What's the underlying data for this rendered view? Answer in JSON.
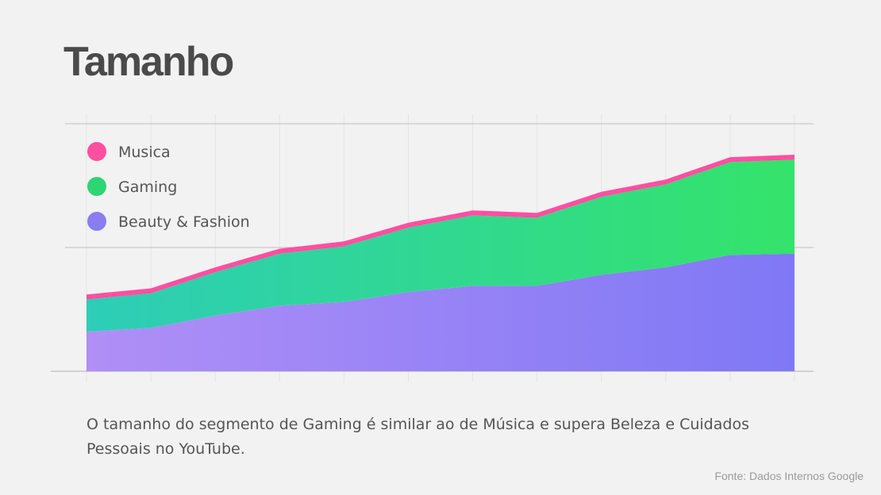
{
  "title": "Tamanho",
  "caption": "O tamanho do segmento de Gaming é similar ao de Música e supera Beleza e Cuidados Pessoais no YouTube.",
  "source": "Fonte: Dados Internos Google",
  "chart_data": {
    "type": "area",
    "stacked": true,
    "x": [
      0,
      1,
      2,
      3,
      4,
      5,
      6,
      7,
      8,
      9,
      10,
      11
    ],
    "ylim": [
      0,
      2
    ],
    "gridlines_y": [
      0,
      1,
      2
    ],
    "legend_placement": "top-left",
    "series": [
      {
        "name": "Beauty & Fashion",
        "color": "#8b7cf2",
        "gradient": [
          "#b08ff6",
          "#7f78f5"
        ],
        "values": [
          0.32,
          0.35,
          0.45,
          0.53,
          0.56,
          0.64,
          0.69,
          0.69,
          0.78,
          0.84,
          0.94,
          0.95
        ]
      },
      {
        "name": "Gaming",
        "color": "#2ed573",
        "gradient": [
          "#2dcdb8",
          "#34e36a"
        ],
        "values": [
          0.26,
          0.28,
          0.35,
          0.42,
          0.45,
          0.52,
          0.57,
          0.55,
          0.63,
          0.67,
          0.75,
          0.76
        ]
      },
      {
        "name": "Musica",
        "color": "#ff4fa0",
        "values": [
          0.04,
          0.04,
          0.04,
          0.04,
          0.04,
          0.04,
          0.04,
          0.04,
          0.04,
          0.04,
          0.04,
          0.04
        ]
      }
    ],
    "legend": [
      "Musica",
      "Gaming",
      "Beauty & Fashion"
    ]
  }
}
